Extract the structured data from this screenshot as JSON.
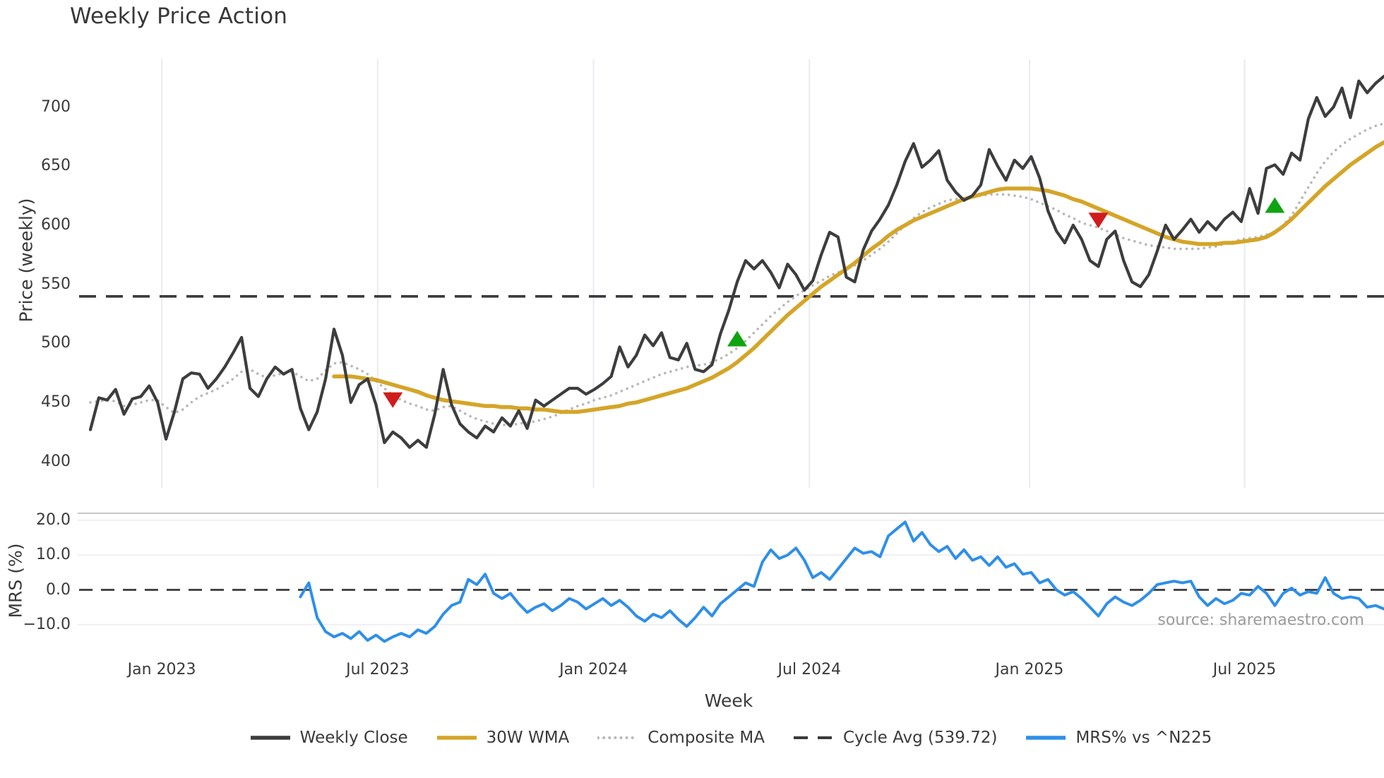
{
  "chart_data": {
    "type": "line",
    "title": "Weekly Price Action",
    "xlabel": "Week",
    "price_axis_label": "Price (weekly)",
    "mrs_axis_label": "MRS (%)",
    "source": "source: sharemaestro.com",
    "cycle_avg_value": 539.72,
    "grid": "vertical-light",
    "legend_position": "bottom-center",
    "price_ylim": [
      395,
      742
    ],
    "mrs_ylim": [
      -16,
      22
    ],
    "x_axis_weeks": [
      0,
      154
    ],
    "price_ticks": [
      {
        "value": 700,
        "label": "700"
      },
      {
        "value": 650,
        "label": "650"
      },
      {
        "value": 600,
        "label": "600"
      },
      {
        "value": 550,
        "label": "550"
      },
      {
        "value": 500,
        "label": "500"
      },
      {
        "value": 450,
        "label": "450"
      },
      {
        "value": 400,
        "label": "400"
      }
    ],
    "mrs_ticks": [
      {
        "value": 20,
        "label": "20.0"
      },
      {
        "value": 10,
        "label": "10.0"
      },
      {
        "value": 0,
        "label": "0.0"
      },
      {
        "value": -10,
        "label": "−10.0"
      }
    ],
    "x_ticks": [
      {
        "week": 8.5,
        "label": "Jan 2023"
      },
      {
        "week": 34.2,
        "label": "Jul 2023"
      },
      {
        "week": 59.9,
        "label": "Jan 2024"
      },
      {
        "week": 85.6,
        "label": "Jul 2024"
      },
      {
        "week": 111.8,
        "label": "Jan 2025"
      },
      {
        "week": 137.4,
        "label": "Jul 2025"
      }
    ],
    "series": [
      {
        "name": "Weekly Close",
        "panel": "price",
        "style": "solid",
        "color": "#3d3d3d",
        "width": 4.2,
        "start_week": 0,
        "values": [
          427,
          454,
          452,
          461,
          440,
          453,
          455,
          464,
          450,
          419,
          442,
          470,
          475,
          474,
          462,
          470,
          480,
          492,
          505,
          462,
          455,
          470,
          480,
          474,
          478,
          445,
          427,
          442,
          470,
          512,
          490,
          450,
          465,
          470,
          448,
          416,
          425,
          420,
          412,
          418,
          412,
          440,
          478,
          448,
          432,
          425,
          420,
          430,
          425,
          437,
          430,
          443,
          428,
          452,
          447,
          452,
          457,
          462,
          462,
          457,
          461,
          466,
          472,
          497,
          480,
          490,
          507,
          498,
          509,
          488,
          486,
          500,
          478,
          476,
          482,
          508,
          528,
          552,
          570,
          563,
          570,
          560,
          547,
          567,
          558,
          545,
          553,
          575,
          594,
          590,
          556,
          552,
          579,
          595,
          605,
          617,
          634,
          654,
          669,
          649,
          655,
          663,
          638,
          628,
          621,
          625,
          634,
          664,
          650,
          638,
          655,
          648,
          658,
          640,
          612,
          595,
          585,
          600,
          588,
          570,
          565,
          588,
          595,
          570,
          552,
          548,
          558,
          578,
          600,
          588,
          596,
          605,
          594,
          603,
          596,
          605,
          611,
          603,
          631,
          610,
          648,
          651,
          643,
          661,
          655,
          690,
          708,
          692,
          700,
          716,
          691,
          722,
          712,
          720,
          726
        ]
      },
      {
        "name": "30W WMA",
        "panel": "price",
        "style": "solid",
        "color": "#d4a528",
        "width": 5.6,
        "start_week": 29,
        "values": [
          472,
          472,
          472,
          471,
          470,
          469,
          467,
          465,
          463,
          461,
          459,
          456,
          454,
          452,
          451,
          450,
          449,
          448,
          447,
          447,
          446,
          446,
          445,
          445,
          444,
          444,
          443,
          442,
          442,
          442,
          443,
          444,
          445,
          446,
          447,
          449,
          450,
          452,
          454,
          456,
          458,
          460,
          462,
          465,
          468,
          471,
          475,
          479,
          484,
          490,
          496,
          503,
          510,
          517,
          524,
          530,
          536,
          542,
          548,
          553,
          558,
          563,
          568,
          574,
          580,
          585,
          591,
          596,
          600,
          604,
          607,
          610,
          613,
          616,
          619,
          622,
          624,
          626,
          628,
          630,
          631,
          631,
          631,
          631,
          630,
          629,
          627,
          625,
          622,
          620,
          617,
          614,
          611,
          608,
          605,
          602,
          599,
          596,
          593,
          590,
          588,
          586,
          585,
          584,
          584,
          584,
          585,
          585,
          586,
          587,
          588,
          590,
          594,
          599,
          605,
          612,
          619,
          626,
          633,
          639,
          645,
          651,
          656,
          661,
          666,
          670
        ]
      },
      {
        "name": "Composite MA",
        "panel": "price",
        "style": "dotted",
        "color": "#b8b8b8",
        "width": 3.6,
        "start_week": 0,
        "values": [
          450,
          451,
          452,
          451,
          447,
          448,
          450,
          452,
          452,
          446,
          441,
          444,
          450,
          455,
          458,
          461,
          465,
          470,
          476,
          478,
          474,
          471,
          473,
          475,
          476,
          472,
          468,
          470,
          477,
          483,
          484,
          481,
          478,
          474,
          468,
          462,
          456,
          452,
          449,
          447,
          444,
          443,
          446,
          447,
          443,
          439,
          436,
          434,
          432,
          431,
          431,
          432,
          433,
          434,
          436,
          438,
          441,
          444,
          447,
          449,
          452,
          454,
          456,
          459,
          462,
          465,
          468,
          471,
          474,
          476,
          478,
          480,
          481,
          482,
          484,
          487,
          491,
          496,
          502,
          509,
          516,
          523,
          529,
          535,
          540,
          545,
          549,
          553,
          557,
          560,
          563,
          566,
          570,
          575,
          580,
          586,
          593,
          600,
          606,
          611,
          615,
          618,
          621,
          622,
          623,
          624,
          625,
          626,
          626,
          626,
          625,
          624,
          622,
          619,
          616,
          613,
          609,
          606,
          602,
          600,
          598,
          595,
          592,
          589,
          587,
          585,
          583,
          582,
          581,
          580,
          580,
          580,
          580,
          581,
          582,
          584,
          586,
          588,
          589,
          590,
          592,
          594,
          600,
          608,
          620,
          632,
          644,
          654,
          662,
          668,
          673,
          677,
          681,
          684,
          686
        ]
      },
      {
        "name": "MRS% vs ^N225",
        "panel": "mrs",
        "style": "solid",
        "color": "#2f8fe8",
        "width": 4,
        "start_week": 25,
        "values": [
          -2,
          2,
          -8,
          -12,
          -13.5,
          -12.5,
          -14,
          -12,
          -14.5,
          -13,
          -14.8,
          -13.5,
          -12.5,
          -13.5,
          -11.5,
          -12.5,
          -10.5,
          -7,
          -4.5,
          -3.5,
          3,
          1.5,
          4.5,
          -1,
          -2.5,
          -1,
          -4,
          -6.5,
          -5,
          -4,
          -6,
          -4.5,
          -2.5,
          -3.5,
          -5.5,
          -4,
          -2.5,
          -4.5,
          -3,
          -5,
          -7.5,
          -9,
          -7,
          -8,
          -6,
          -8.5,
          -10.5,
          -8,
          -5,
          -7.5,
          -4,
          -2,
          0,
          2,
          1,
          8,
          11.5,
          9,
          10,
          12,
          8.5,
          3.5,
          5,
          3,
          6,
          9,
          12,
          10.5,
          11,
          9.5,
          15.5,
          17.5,
          19.5,
          14,
          16.5,
          13,
          11,
          12.5,
          9,
          11.5,
          8.5,
          9.5,
          7,
          9.5,
          6.5,
          7.5,
          4.5,
          5,
          2,
          3,
          0,
          -1.5,
          -0.5,
          -2.5,
          -5,
          -7.5,
          -4,
          -2,
          -3.5,
          -4.5,
          -3,
          -1,
          1.5,
          2,
          2.5,
          2,
          2.5,
          -2,
          -4.5,
          -2.5,
          -4,
          -3,
          -1,
          -1.5,
          1,
          -1,
          -4.5,
          -1,
          0.5,
          -1.5,
          -0.5,
          -1,
          3.5,
          -1,
          -2.5,
          -2,
          -2.5,
          -5,
          -4.5,
          -5.5
        ]
      }
    ],
    "markers": {
      "buy": {
        "shape": "triangle-up",
        "color": "#10a412",
        "points": [
          {
            "week": 77,
            "price": 504
          },
          {
            "week": 141,
            "price": 617
          }
        ]
      },
      "sell": {
        "shape": "triangle-down",
        "color": "#cf1d1d",
        "points": [
          {
            "week": 36,
            "price": 452
          },
          {
            "week": 120,
            "price": 604
          }
        ]
      }
    },
    "legend": [
      {
        "label": "Weekly Close",
        "style": "solid",
        "color": "#3d3d3d"
      },
      {
        "label": "30W WMA",
        "style": "solid",
        "color": "#d4a528"
      },
      {
        "label": "Composite MA",
        "style": "dotted",
        "color": "#b8b8b8"
      },
      {
        "label": "Cycle Avg (539.72)",
        "style": "dashed",
        "color": "#3a3a3a"
      },
      {
        "label": "MRS% vs ^N225",
        "style": "solid",
        "color": "#2f8fe8"
      }
    ],
    "colors": {
      "background": "#ffffff",
      "grid": "#e9ebf2",
      "mrs_grid": "#efeff4",
      "mrs_top_spine": "#c8c8c8",
      "dashed_reference": "#3a3a3a",
      "text": "#3a3a3a",
      "source_text": "#9b9b9b"
    }
  }
}
